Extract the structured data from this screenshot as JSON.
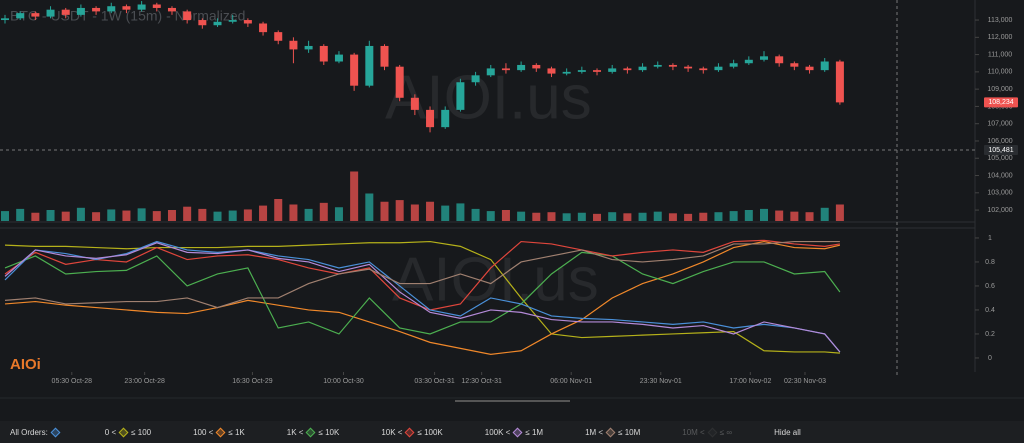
{
  "header": {
    "title": "BTC - USDT - 1W (15m) - Normalized"
  },
  "watermark": "AIOI.us",
  "logo": "AIOi",
  "chart_data": [
    {
      "type": "candlestick",
      "up_color": "#26a69a",
      "down_color": "#ef5350",
      "ylim": [
        101310,
        114160
      ],
      "yticks": [
        {
          "value": 102000,
          "label": "102,000"
        },
        {
          "value": 103000,
          "label": "103,000"
        },
        {
          "value": 104000,
          "label": "104,000"
        },
        {
          "value": 105000,
          "label": "105,000"
        },
        {
          "value": 106000,
          "label": "106,000"
        },
        {
          "value": 107000,
          "label": "107,000"
        },
        {
          "value": 108000,
          "label": "108,000"
        },
        {
          "value": 109000,
          "label": "109,000"
        },
        {
          "value": 110000,
          "label": "110,000"
        },
        {
          "value": 111000,
          "label": "111,000"
        },
        {
          "value": 112000,
          "label": "112,000"
        },
        {
          "value": 113000,
          "label": "113,000"
        }
      ],
      "markers": [
        {
          "value": 108234,
          "label": "108,234",
          "color": "#ef5350"
        },
        {
          "value": 105481,
          "label": "105,481",
          "color": "#2a2d31"
        }
      ],
      "ohlc": [
        [
          113000,
          113300,
          112800,
          113100
        ],
        [
          113100,
          113500,
          113000,
          113400
        ],
        [
          113400,
          113500,
          113000,
          113200
        ],
        [
          113200,
          113800,
          113100,
          113600
        ],
        [
          113600,
          113700,
          113100,
          113300
        ],
        [
          113300,
          113900,
          113200,
          113700
        ],
        [
          113700,
          113800,
          113300,
          113500
        ],
        [
          113500,
          114000,
          113400,
          113800
        ],
        [
          113800,
          113900,
          113400,
          113600
        ],
        [
          113600,
          114100,
          113500,
          113900
        ],
        [
          113900,
          114000,
          113500,
          113700
        ],
        [
          113700,
          113800,
          113300,
          113500
        ],
        [
          113500,
          113600,
          112800,
          113000
        ],
        [
          113000,
          113100,
          112500,
          112700
        ],
        [
          112700,
          113100,
          112600,
          112900
        ],
        [
          112900,
          113300,
          112800,
          113000
        ],
        [
          113000,
          113100,
          112600,
          112800
        ],
        [
          112800,
          112900,
          112100,
          112300
        ],
        [
          112300,
          112400,
          111600,
          111800
        ],
        [
          111800,
          112000,
          110500,
          111300
        ],
        [
          111300,
          111800,
          111100,
          111500
        ],
        [
          111500,
          111600,
          110400,
          110600
        ],
        [
          110600,
          111200,
          110500,
          111000
        ],
        [
          111000,
          111100,
          108900,
          109200
        ],
        [
          109200,
          111800,
          109100,
          111500
        ],
        [
          111500,
          111600,
          110100,
          110300
        ],
        [
          110300,
          110400,
          108300,
          108500
        ],
        [
          108500,
          108700,
          107500,
          107800
        ],
        [
          107800,
          108000,
          106500,
          106800
        ],
        [
          106800,
          108000,
          106700,
          107800
        ],
        [
          107800,
          109600,
          107700,
          109400
        ],
        [
          109400,
          110000,
          109200,
          109800
        ],
        [
          109800,
          110400,
          109700,
          110200
        ],
        [
          110200,
          110500,
          109900,
          110100
        ],
        [
          110100,
          110600,
          110000,
          110400
        ],
        [
          110400,
          110500,
          110000,
          110200
        ],
        [
          110200,
          110300,
          109700,
          109900
        ],
        [
          109900,
          110200,
          109800,
          110000
        ],
        [
          110000,
          110300,
          109900,
          110100
        ],
        [
          110100,
          110200,
          109800,
          110000
        ],
        [
          110000,
          110400,
          109900,
          110200
        ],
        [
          110200,
          110300,
          109900,
          110100
        ],
        [
          110100,
          110500,
          110000,
          110300
        ],
        [
          110300,
          110600,
          110200,
          110400
        ],
        [
          110400,
          110500,
          110100,
          110300
        ],
        [
          110300,
          110400,
          110000,
          110200
        ],
        [
          110200,
          110300,
          109900,
          110100
        ],
        [
          110100,
          110500,
          110000,
          110300
        ],
        [
          110300,
          110700,
          110200,
          110500
        ],
        [
          110500,
          110900,
          110400,
          110700
        ],
        [
          110700,
          111200,
          110600,
          110900
        ],
        [
          110900,
          111000,
          110300,
          110500
        ],
        [
          110500,
          110600,
          110100,
          110300
        ],
        [
          110300,
          110400,
          109900,
          110100
        ],
        [
          110100,
          110800,
          110000,
          110600
        ],
        [
          110600,
          110700,
          108100,
          108234
        ]
      ]
    },
    {
      "type": "bar",
      "vlim": [
        0,
        100
      ],
      "values": [
        18,
        22,
        15,
        20,
        17,
        24,
        16,
        21,
        19,
        23,
        18,
        20,
        26,
        22,
        17,
        19,
        21,
        28,
        40,
        30,
        22,
        33,
        25,
        90,
        50,
        35,
        38,
        30,
        35,
        28,
        32,
        22,
        18,
        20,
        17,
        15,
        16,
        14,
        15,
        13,
        16,
        14,
        15,
        17,
        14,
        13,
        15,
        16,
        18,
        20,
        22,
        19,
        17,
        16,
        24,
        30
      ]
    },
    {
      "type": "line",
      "xlim": [
        -0.3,
        63.6
      ],
      "ylim": [
        -0.117,
        1.083
      ],
      "yticks": [
        0,
        0.2,
        0.4,
        0.6,
        0.8,
        1
      ],
      "xticks": [
        {
          "value": 4.4,
          "label": "05:30 Oct-28"
        },
        {
          "value": 9.2,
          "label": "23:00 Oct-28"
        },
        {
          "value": 16.3,
          "label": "16:30 Oct-29"
        },
        {
          "value": 22.3,
          "label": "10:00 Oct-30"
        },
        {
          "value": 28.3,
          "label": "03:30 Oct-31"
        },
        {
          "value": 31.4,
          "label": "12:30 Oct-31"
        },
        {
          "value": 37.3,
          "label": "06:00 Nov-01"
        },
        {
          "value": 43.2,
          "label": "23:30 Nov-01"
        },
        {
          "value": 49.1,
          "label": "17:00 Nov-02"
        },
        {
          "value": 52.7,
          "label": "02:30 Nov-03"
        }
      ],
      "x": [
        0,
        2,
        4,
        6,
        8,
        10,
        12,
        14,
        16,
        18,
        20,
        22,
        24,
        26,
        28,
        30,
        32,
        34,
        36,
        38,
        40,
        42,
        44,
        46,
        48,
        50,
        52,
        54,
        55
      ],
      "series": [
        {
          "name": "0 < ≤ 100",
          "color": "#b5b11a",
          "values": [
            0.94,
            0.93,
            0.93,
            0.92,
            0.91,
            0.92,
            0.92,
            0.92,
            0.93,
            0.93,
            0.94,
            0.95,
            0.96,
            0.96,
            0.97,
            0.93,
            0.82,
            0.5,
            0.2,
            0.17,
            0.18,
            0.19,
            0.2,
            0.21,
            0.22,
            0.06,
            0.05,
            0.05,
            0.04
          ]
        },
        {
          "name": "100 < ≤ 1K",
          "color": "#f0882a",
          "values": [
            0.45,
            0.47,
            0.44,
            0.42,
            0.4,
            0.38,
            0.37,
            0.42,
            0.48,
            0.44,
            0.4,
            0.38,
            0.3,
            0.22,
            0.13,
            0.08,
            0.03,
            0.06,
            0.2,
            0.32,
            0.5,
            0.62,
            0.7,
            0.8,
            0.92,
            0.97,
            0.92,
            0.91,
            0.94
          ]
        },
        {
          "name": "1K < ≤ 10K",
          "color": "#4caf50",
          "values": [
            0.75,
            0.85,
            0.7,
            0.72,
            0.73,
            0.85,
            0.6,
            0.7,
            0.75,
            0.25,
            0.3,
            0.2,
            0.5,
            0.25,
            0.2,
            0.3,
            0.3,
            0.45,
            0.7,
            0.88,
            0.85,
            0.7,
            0.62,
            0.72,
            0.8,
            0.8,
            0.7,
            0.72,
            0.55
          ]
        },
        {
          "name": "10K < ≤ 100K",
          "color": "#e0463c",
          "values": [
            0.7,
            0.88,
            0.78,
            0.82,
            0.8,
            0.92,
            0.82,
            0.85,
            0.86,
            0.82,
            0.75,
            0.7,
            0.75,
            0.5,
            0.4,
            0.45,
            0.75,
            0.97,
            0.95,
            0.9,
            0.85,
            0.88,
            0.9,
            0.88,
            0.97,
            0.98,
            0.95,
            0.93,
            0.95
          ]
        },
        {
          "name": "All Orders:",
          "color": "#4a90d9",
          "values": [
            0.65,
            0.9,
            0.87,
            0.82,
            0.87,
            0.97,
            0.9,
            0.88,
            0.9,
            0.85,
            0.82,
            0.75,
            0.8,
            0.6,
            0.4,
            0.35,
            0.5,
            0.45,
            0.35,
            0.33,
            0.32,
            0.3,
            0.28,
            0.3,
            0.25,
            0.28,
            0.25,
            0.2,
            0.05
          ]
        },
        {
          "name": "100K < ≤ 1M",
          "color": "#b48ad8",
          "values": [
            0.68,
            0.9,
            0.85,
            0.83,
            0.86,
            0.96,
            0.88,
            0.87,
            0.9,
            0.83,
            0.8,
            0.72,
            0.78,
            0.55,
            0.38,
            0.33,
            0.4,
            0.38,
            0.32,
            0.3,
            0.3,
            0.28,
            0.25,
            0.27,
            0.2,
            0.3,
            0.25,
            0.2,
            0.05
          ]
        },
        {
          "name": "1M < ≤ 10M",
          "color": "#a08070",
          "values": [
            0.48,
            0.5,
            0.45,
            0.46,
            0.47,
            0.47,
            0.5,
            0.42,
            0.5,
            0.5,
            0.62,
            0.7,
            0.74,
            0.62,
            0.62,
            0.7,
            0.62,
            0.8,
            0.85,
            0.9,
            0.82,
            0.8,
            0.82,
            0.85,
            0.95,
            0.95,
            0.97,
            0.97,
            0.97
          ]
        }
      ]
    }
  ],
  "legend": {
    "items": [
      {
        "lo": "All Orders:",
        "hi": "",
        "color": "#4a90d9"
      },
      {
        "lo": "0 <",
        "hi": "≤ 100",
        "color": "#b5b11a"
      },
      {
        "lo": "100 <",
        "hi": "≤ 1K",
        "color": "#f0882a"
      },
      {
        "lo": "1K <",
        "hi": "≤ 10K",
        "color": "#4caf50"
      },
      {
        "lo": "10K <",
        "hi": "≤ 100K",
        "color": "#e0463c"
      },
      {
        "lo": "100K <",
        "hi": "≤ 1M",
        "color": "#b48ad8"
      },
      {
        "lo": "1M <",
        "hi": "≤ 10M",
        "color": "#a08070"
      },
      {
        "lo": "10M <",
        "hi": "≤ ∞",
        "color": "#555555",
        "faded": true
      }
    ],
    "hide_all": "Hide all"
  }
}
